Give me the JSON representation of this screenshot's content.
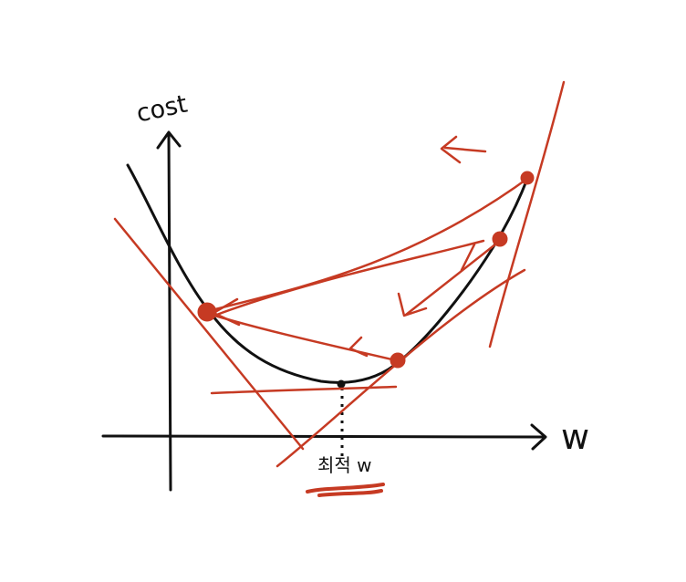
{
  "labels": {
    "y_axis": "cost",
    "x_axis": "w",
    "optimal_w": "최적 w"
  },
  "colors": {
    "ink": "#111111",
    "red": "#c63a23",
    "background": "#ffffff"
  }
}
